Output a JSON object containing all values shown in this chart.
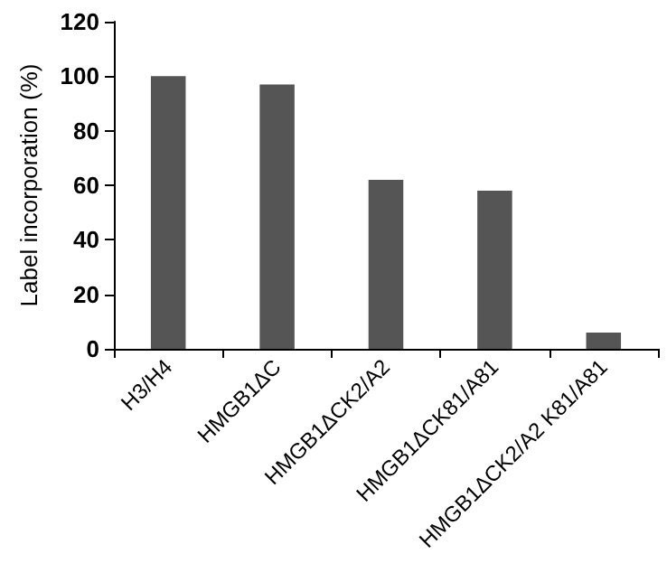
{
  "chart_data": {
    "type": "bar",
    "ylabel": "Label incorporation (%)",
    "categories": [
      "H3/H4",
      "HMGB1ΔC",
      "HMGB1ΔCK2/A2",
      "HMGB1ΔCK81/A81",
      "HMGB1ΔCK2/A2 K81/A81"
    ],
    "values": [
      100,
      97,
      62,
      58,
      6
    ],
    "color": "#555555",
    "ylim": [
      0,
      120
    ],
    "yticks": [
      0,
      20,
      40,
      60,
      80,
      100,
      120
    ],
    "grid": false
  }
}
